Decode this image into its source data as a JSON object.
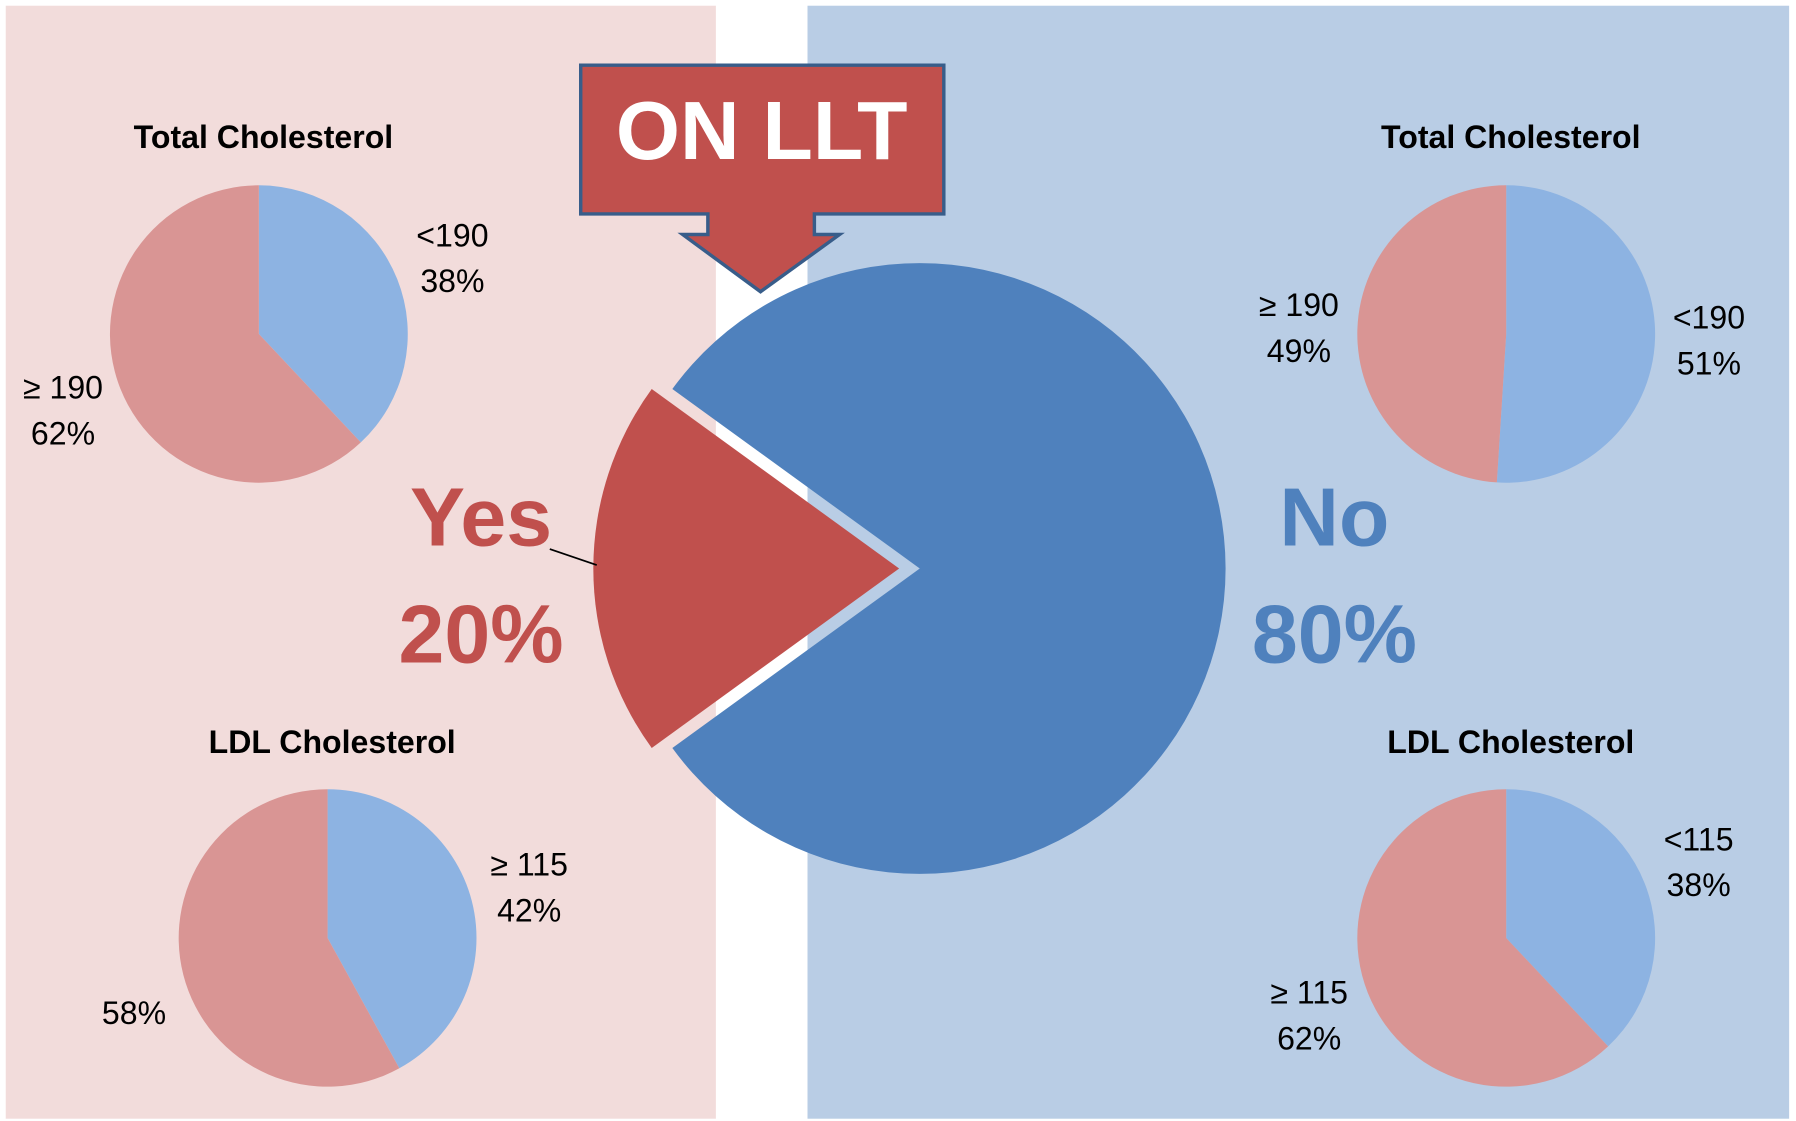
{
  "chart_data": [
    {
      "type": "pie",
      "title": "ON LLT",
      "categories": [
        "Yes",
        "No"
      ],
      "values": [
        20,
        80
      ],
      "value_labels": [
        "20%",
        "80%"
      ],
      "colors": [
        "#c0504d",
        "#4f81bd"
      ]
    },
    {
      "type": "pie",
      "title": "Total Cholesterol",
      "categories": [
        "<190",
        "≥ 190"
      ],
      "values": [
        38,
        62
      ],
      "value_labels": [
        "38%",
        "62%"
      ],
      "colors": [
        "#8db3e2",
        "#d99594"
      ]
    },
    {
      "type": "pie",
      "title": "LDL Cholesterol",
      "categories": [
        "≥ 115",
        null
      ],
      "values": [
        42,
        58
      ],
      "value_labels": [
        "42%",
        "58%"
      ],
      "colors": [
        "#8db3e2",
        "#d99594"
      ]
    },
    {
      "type": "pie",
      "title": "Total Cholesterol",
      "categories": [
        "<190",
        "≥ 190"
      ],
      "values": [
        51,
        49
      ],
      "value_labels": [
        "51%",
        "49%"
      ],
      "colors": [
        "#8db3e2",
        "#d99594"
      ]
    },
    {
      "type": "pie",
      "title": "LDL Cholesterol",
      "categories": [
        "<115",
        "≥ 115"
      ],
      "values": [
        38,
        62
      ],
      "value_labels": [
        "38%",
        "62%"
      ],
      "colors": [
        "#8db3e2",
        "#d99594"
      ]
    }
  ]
}
